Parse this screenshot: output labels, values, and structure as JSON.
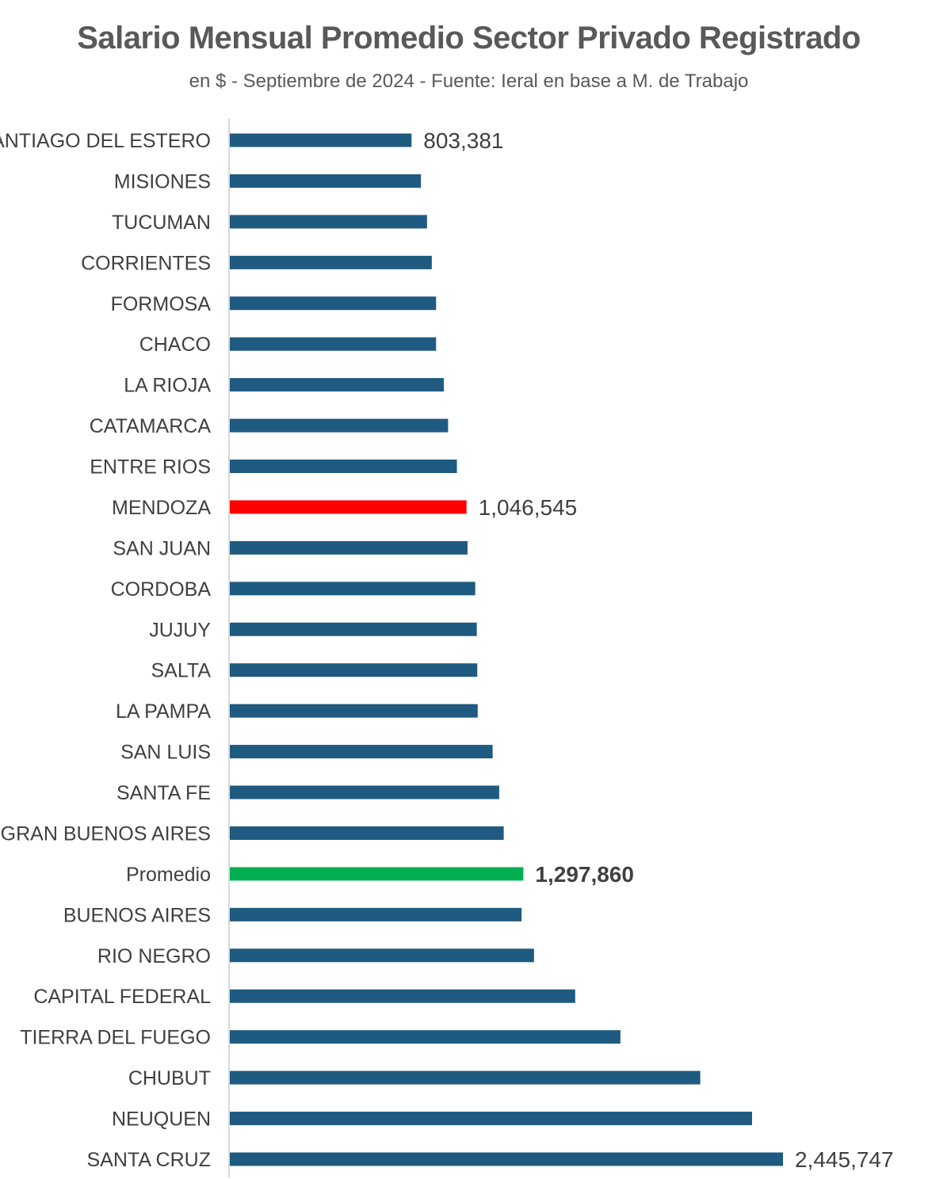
{
  "chart_data": {
    "type": "bar",
    "orientation": "horizontal",
    "title": "Salario Mensual Promedio Sector Privado Registrado",
    "subtitle": "en $ - Septiembre de  2024 - Fuente: Ieral en base a M. de Trabajo",
    "xlabel": "",
    "ylabel": "",
    "xlim": [
      0,
      2445747
    ],
    "colors": {
      "default": "#1f5a80",
      "highlight": "#ff0000",
      "average": "#00b050",
      "axis": "#d9d9d9",
      "label": "#404040"
    },
    "bars": [
      {
        "category": "SANTIAGO DEL ESTERO",
        "value": 803381,
        "label": "803,381",
        "color": "#1f5a80",
        "label_color": "#404040",
        "label_bold": false
      },
      {
        "category": "MISIONES",
        "value": 845000,
        "label": "",
        "color": "#1f5a80"
      },
      {
        "category": "TUCUMAN",
        "value": 872000,
        "label": "",
        "color": "#1f5a80"
      },
      {
        "category": "CORRIENTES",
        "value": 893000,
        "label": "",
        "color": "#1f5a80"
      },
      {
        "category": "FORMOSA",
        "value": 912000,
        "label": "",
        "color": "#1f5a80"
      },
      {
        "category": "CHACO",
        "value": 912000,
        "label": "",
        "color": "#1f5a80"
      },
      {
        "category": "LA RIOJA",
        "value": 946000,
        "label": "",
        "color": "#1f5a80"
      },
      {
        "category": "CATAMARCA",
        "value": 965000,
        "label": "",
        "color": "#1f5a80"
      },
      {
        "category": "ENTRE RIOS",
        "value": 1004000,
        "label": "",
        "color": "#1f5a80"
      },
      {
        "category": "MENDOZA",
        "value": 1046545,
        "label": "1,046,545",
        "color": "#ff0000",
        "label_color": "#e00000",
        "label_bold": false
      },
      {
        "category": "SAN JUAN",
        "value": 1051000,
        "label": "",
        "color": "#1f5a80"
      },
      {
        "category": "CORDOBA",
        "value": 1085000,
        "label": "",
        "color": "#1f5a80"
      },
      {
        "category": "JUJUY",
        "value": 1092000,
        "label": "",
        "color": "#1f5a80"
      },
      {
        "category": "SALTA",
        "value": 1094000,
        "label": "",
        "color": "#1f5a80"
      },
      {
        "category": "LA PAMPA",
        "value": 1096000,
        "label": "",
        "color": "#1f5a80"
      },
      {
        "category": "SAN LUIS",
        "value": 1162000,
        "label": "",
        "color": "#1f5a80"
      },
      {
        "category": "SANTA FE",
        "value": 1191000,
        "label": "",
        "color": "#1f5a80"
      },
      {
        "category": "GRAN BUENOS AIRES",
        "value": 1211000,
        "label": "",
        "color": "#1f5a80"
      },
      {
        "category": "Promedio",
        "value": 1297860,
        "label": "1,297,860",
        "color": "#00b050",
        "label_color": "#404040",
        "label_bold": true
      },
      {
        "category": "BUENOS AIRES",
        "value": 1290000,
        "label": "",
        "color": "#1f5a80"
      },
      {
        "category": "RIO NEGRO",
        "value": 1345000,
        "label": "",
        "color": "#1f5a80"
      },
      {
        "category": "CAPITAL FEDERAL",
        "value": 1527000,
        "label": "",
        "color": "#1f5a80"
      },
      {
        "category": "TIERRA DEL FUEGO",
        "value": 1727000,
        "label": "",
        "color": "#1f5a80"
      },
      {
        "category": "CHUBUT",
        "value": 2080000,
        "label": "",
        "color": "#1f5a80"
      },
      {
        "category": "NEUQUEN",
        "value": 2309000,
        "label": "",
        "color": "#1f5a80"
      },
      {
        "category": "SANTA CRUZ",
        "value": 2445747,
        "label": "2,445,747",
        "color": "#1f5a80",
        "label_color": "#404040",
        "label_bold": false
      }
    ]
  }
}
